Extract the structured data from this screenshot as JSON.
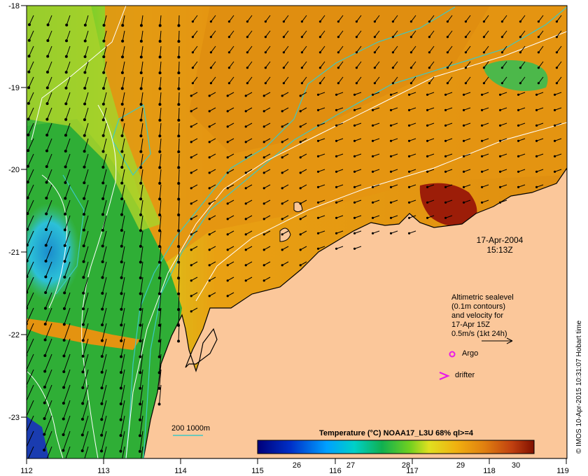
{
  "map": {
    "date_line": "17-Apr-2004",
    "time_line": "15:13Z",
    "x_ticks": [
      "112",
      "113",
      "114",
      "115",
      "116",
      "117",
      "118",
      "119"
    ],
    "y_ticks": [
      "-18",
      "-19",
      "-20",
      "-21",
      "-22",
      "-23"
    ],
    "legend": {
      "lines": [
        "Altimetric sealevel",
        "(0.1m contours)",
        "and velocity for",
        "17-Apr 15Z",
        "0.5m/s (1kt 24h)"
      ],
      "argo_label": "Argo",
      "drifter_label": "drifter"
    },
    "isobath_label": "200  1000m",
    "colorbar": {
      "title": "Temperature (°C) NOAA17_L3U 68% ql>=4",
      "ticks": [
        "26",
        "27",
        "28",
        "29",
        "30"
      ]
    },
    "credit": "© IMOS 10-Apr-2015 10:31:07 Hobart time"
  },
  "colors": {
    "land": "#fbc79a",
    "warm": "#e4930e",
    "hot": "#9c1d08",
    "green": "#2aa52a",
    "cyan_isobath": "#3cc9c4",
    "argo": "#e81ae8"
  }
}
